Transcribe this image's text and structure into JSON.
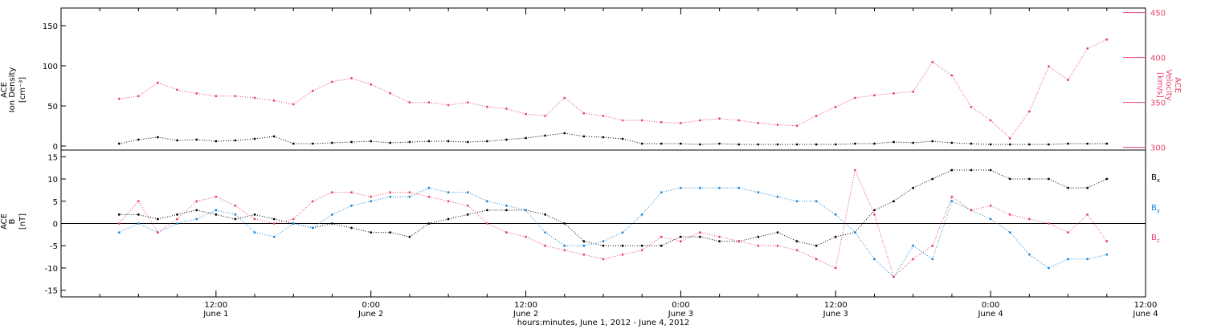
{
  "figure": {
    "xaxis_title": "hours:minutes, June  1, 2012 - June  4, 2012",
    "xticks": [
      {
        "t": 12,
        "time": "12:00",
        "date": "June 1"
      },
      {
        "t": 24,
        "time": "0:00",
        "date": "June 2"
      },
      {
        "t": 36,
        "time": "12:00",
        "date": "June 2"
      },
      {
        "t": 48,
        "time": "0:00",
        "date": "June 3"
      },
      {
        "t": 60,
        "time": "12:00",
        "date": "June 3"
      },
      {
        "t": 72,
        "time": "0:00",
        "date": "June 4"
      },
      {
        "t": 84,
        "time": "12:00",
        "date": "June 4"
      }
    ],
    "xlim_hours": [
      0,
      84
    ]
  },
  "colors": {
    "density": "#000000",
    "velocity": "#e8416a",
    "bx": "#000000",
    "by": "#1a86d8",
    "bz": "#e8416a"
  },
  "chart_data": [
    {
      "type": "scatter",
      "panel": "top",
      "x_unit": "hours since June 1, 2012 00:00",
      "left_axis": {
        "label_lines": [
          "ACE",
          "Ion Density",
          "[cm⁻³]"
        ],
        "ylim": [
          -5,
          172
        ],
        "ticks": [
          0,
          50,
          100,
          150
        ]
      },
      "right_axis": {
        "label_lines": [
          "ACE",
          "Velocity",
          "[km/s]"
        ],
        "ylim": [
          297,
          455
        ],
        "ticks": [
          300,
          350,
          400,
          450
        ]
      },
      "series": [
        {
          "key": "density",
          "axis": "left",
          "x": [
            4.5,
            6,
            7.5,
            9,
            10.5,
            12,
            13.5,
            15,
            16.5,
            18,
            19.5,
            21,
            22.5,
            24,
            25.5,
            27,
            28.5,
            30,
            31.5,
            33,
            34.5,
            36,
            37.5,
            39,
            40.5,
            42,
            43.5,
            45,
            46.5,
            48,
            49.5,
            51,
            52.5,
            54,
            55.5,
            57,
            58.5,
            60,
            61.5,
            63,
            64.5,
            66,
            67.5,
            69,
            70.5,
            72,
            73.5,
            75,
            76.5,
            78,
            79.5,
            81
          ],
          "y": [
            3,
            8,
            11,
            7,
            8,
            6,
            7,
            9,
            12,
            3,
            3,
            4,
            5,
            6,
            4,
            5,
            6,
            6,
            5,
            6,
            8,
            10,
            13,
            16,
            12,
            11,
            9,
            3,
            3,
            3,
            2,
            3,
            2,
            2,
            2,
            2,
            2,
            2,
            3,
            3,
            5,
            4,
            6,
            4,
            3,
            2,
            2,
            2,
            2,
            3,
            3,
            3
          ]
        },
        {
          "key": "velocity",
          "axis": "right",
          "x": [
            4.5,
            6,
            7.5,
            9,
            10.5,
            12,
            13.5,
            15,
            16.5,
            18,
            19.5,
            21,
            22.5,
            24,
            25.5,
            27,
            28.5,
            30,
            31.5,
            33,
            34.5,
            36,
            37.5,
            39,
            40.5,
            42,
            43.5,
            45,
            46.5,
            48,
            49.5,
            51,
            52.5,
            54,
            55.5,
            57,
            58.5,
            60,
            61.5,
            63,
            64.5,
            66,
            67.5,
            69,
            70.5,
            72,
            73.5,
            75,
            76.5,
            78,
            79.5,
            81
          ],
          "y": [
            354,
            357,
            372,
            364,
            360,
            357,
            357,
            355,
            352,
            348,
            363,
            373,
            377,
            370,
            360,
            350,
            350,
            347,
            350,
            345,
            343,
            337,
            335,
            355,
            338,
            335,
            330,
            330,
            328,
            327,
            330,
            332,
            330,
            327,
            325,
            324,
            335,
            345,
            355,
            358,
            360,
            362,
            395,
            380,
            345,
            330,
            310,
            340,
            390,
            375,
            410,
            420
          ]
        }
      ]
    },
    {
      "type": "scatter",
      "panel": "bottom",
      "x_unit": "hours since June 1, 2012 00:00",
      "left_axis": {
        "label_lines": [
          "ACE",
          "B",
          "[nT]"
        ],
        "ylim": [
          -16.5,
          16.5
        ],
        "ticks": [
          -15,
          -10,
          -5,
          0,
          5,
          10,
          15
        ]
      },
      "legend": [
        {
          "key": "bx",
          "label": "B",
          "sub": "x"
        },
        {
          "key": "by",
          "label": "B",
          "sub": "y"
        },
        {
          "key": "bz",
          "label": "B",
          "sub": "z"
        }
      ],
      "series": [
        {
          "key": "bx",
          "x": [
            4.5,
            6,
            7.5,
            9,
            10.5,
            12,
            13.5,
            15,
            16.5,
            18,
            19.5,
            21,
            22.5,
            24,
            25.5,
            27,
            28.5,
            30,
            31.5,
            33,
            34.5,
            36,
            37.5,
            39,
            40.5,
            42,
            43.5,
            45,
            46.5,
            48,
            49.5,
            51,
            52.5,
            54,
            55.5,
            57,
            58.5,
            60,
            61.5,
            63,
            64.5,
            66,
            67.5,
            69,
            70.5,
            72,
            73.5,
            75,
            76.5,
            78,
            79.5,
            81
          ],
          "y": [
            2,
            2,
            1,
            2,
            3,
            2,
            1,
            2,
            1,
            0,
            -1,
            0,
            -1,
            -2,
            -2,
            -3,
            0,
            1,
            2,
            3,
            3,
            3,
            2,
            0,
            -4,
            -5,
            -5,
            -5,
            -5,
            -3,
            -3,
            -4,
            -4,
            -3,
            -2,
            -4,
            -5,
            -3,
            -2,
            3,
            5,
            8,
            10,
            12,
            12,
            12,
            10,
            10,
            10,
            8,
            8,
            10
          ]
        },
        {
          "key": "by",
          "x": [
            4.5,
            6,
            7.5,
            9,
            10.5,
            12,
            13.5,
            15,
            16.5,
            18,
            19.5,
            21,
            22.5,
            24,
            25.5,
            27,
            28.5,
            30,
            31.5,
            33,
            34.5,
            36,
            37.5,
            39,
            40.5,
            42,
            43.5,
            45,
            46.5,
            48,
            49.5,
            51,
            52.5,
            54,
            55.5,
            57,
            58.5,
            60,
            61.5,
            63,
            64.5,
            66,
            67.5,
            69,
            70.5,
            72,
            73.5,
            75,
            76.5,
            78,
            79.5,
            81
          ],
          "y": [
            -2,
            0,
            -2,
            0,
            1,
            3,
            2,
            -2,
            -3,
            0,
            -1,
            2,
            4,
            5,
            6,
            6,
            8,
            7,
            7,
            5,
            4,
            3,
            -2,
            -5,
            -5,
            -4,
            -2,
            2,
            7,
            8,
            8,
            8,
            8,
            7,
            6,
            5,
            5,
            2,
            -2,
            -8,
            -12,
            -5,
            -8,
            5,
            3,
            1,
            -2,
            -7,
            -10,
            -8,
            -8,
            -7
          ]
        },
        {
          "key": "bz",
          "x": [
            4.5,
            6,
            7.5,
            9,
            10.5,
            12,
            13.5,
            15,
            16.5,
            18,
            19.5,
            21,
            22.5,
            24,
            25.5,
            27,
            28.5,
            30,
            31.5,
            33,
            34.5,
            36,
            37.5,
            39,
            40.5,
            42,
            43.5,
            45,
            46.5,
            48,
            49.5,
            51,
            52.5,
            54,
            55.5,
            57,
            58.5,
            60,
            61.5,
            63,
            64.5,
            66,
            67.5,
            69,
            70.5,
            72,
            73.5,
            75,
            76.5,
            78,
            79.5,
            81
          ],
          "y": [
            0,
            5,
            -2,
            1,
            5,
            6,
            4,
            1,
            0,
            1,
            5,
            7,
            7,
            6,
            7,
            7,
            6,
            5,
            4,
            0,
            -2,
            -3,
            -5,
            -6,
            -7,
            -8,
            -7,
            -6,
            -3,
            -4,
            -2,
            -3,
            -4,
            -5,
            -5,
            -6,
            -8,
            -10,
            12,
            2,
            -12,
            -8,
            -5,
            6,
            3,
            4,
            2,
            1,
            0,
            -2,
            2,
            -4
          ]
        }
      ]
    }
  ]
}
